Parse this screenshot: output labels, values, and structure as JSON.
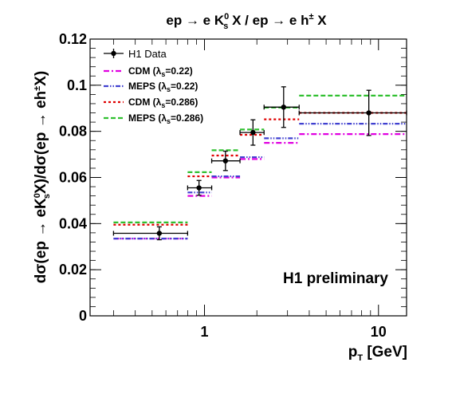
{
  "chart_data": {
    "type": "scatter",
    "title": "ep → e K⁰ₛ X / ep → e h± X",
    "title_parts": {
      "prefix": "ep → e K",
      "k_sup": "0",
      "k_sub": "s",
      "middle": " X / ep → e h",
      "h_sup": "±",
      "suffix": " X"
    },
    "xlabel": "p_T [GeV]",
    "xlabel_parts": {
      "main": "p",
      "sub": "T",
      "unit": " [GeV]"
    },
    "ylabel": "dσ(ep → eK⁰ₛX)/dσ(ep → eh±X)",
    "xscale": "log",
    "xlim": [
      0.22,
      14.5
    ],
    "ylim": [
      0,
      0.12
    ],
    "x_ticks": [
      1,
      10
    ],
    "x_tick_labels": [
      "1",
      "10"
    ],
    "y_ticks": [
      0,
      0.02,
      0.04,
      0.06,
      0.08,
      0.1,
      0.12
    ],
    "y_tick_labels": [
      "0",
      "0.02",
      "0.04",
      "0.06",
      "0.08",
      "0.1",
      "0.12"
    ],
    "annotation": "H1 preliminary",
    "legend_position": "top-left",
    "bins": [
      [
        0.3,
        0.8
      ],
      [
        0.8,
        1.1
      ],
      [
        1.1,
        1.6
      ],
      [
        1.6,
        2.2
      ],
      [
        2.2,
        3.5
      ],
      [
        3.5,
        14.5
      ]
    ],
    "data": {
      "name": "H1 Data",
      "x": [
        0.55,
        0.93,
        1.32,
        1.9,
        2.85,
        8.8
      ],
      "x_err_low": [
        0.25,
        0.13,
        0.22,
        0.3,
        0.65,
        5.3
      ],
      "x_err_high": [
        0.25,
        0.17,
        0.28,
        0.3,
        0.65,
        5.7
      ],
      "y": [
        0.0358,
        0.0555,
        0.0672,
        0.0795,
        0.0905,
        0.088
      ],
      "y_err": [
        0.0028,
        0.0032,
        0.0042,
        0.0055,
        0.0088,
        0.0098
      ]
    },
    "series": [
      {
        "name": "CDM (λₛ=0.22)",
        "label_main": "CDM (",
        "label_sym": "λ",
        "label_sub": "s",
        "label_val": "=0.22)",
        "color": "#e000e0",
        "dash": "7 3 2 3",
        "values": [
          0.0335,
          0.052,
          0.06,
          0.068,
          0.075,
          0.0788
        ]
      },
      {
        "name": "MEPS (λₛ=0.22)",
        "label_main": "MEPS (",
        "label_sym": "λ",
        "label_sub": "s",
        "label_val": "=0.22)",
        "color": "#4040d0",
        "dash": "6 2 1.5 2 1.5 2",
        "values": [
          0.0335,
          0.0535,
          0.0605,
          0.0688,
          0.077,
          0.0833
        ]
      },
      {
        "name": "CDM (λₛ=0.286)",
        "label_main": "CDM (",
        "label_sym": "λ",
        "label_sub": "s",
        "label_val": "=0.286)",
        "color": "#e00000",
        "dash": "3 3",
        "values": [
          0.0395,
          0.0605,
          0.0695,
          0.0785,
          0.0852,
          0.088
        ]
      },
      {
        "name": "MEPS (λₛ=0.286)",
        "label_main": "MEPS (",
        "label_sym": "λ",
        "label_sub": "s",
        "label_val": "=0.286)",
        "color": "#30c030",
        "dash": "6 3",
        "values": [
          0.0405,
          0.0623,
          0.0718,
          0.0808,
          0.0903,
          0.0955
        ]
      }
    ]
  }
}
